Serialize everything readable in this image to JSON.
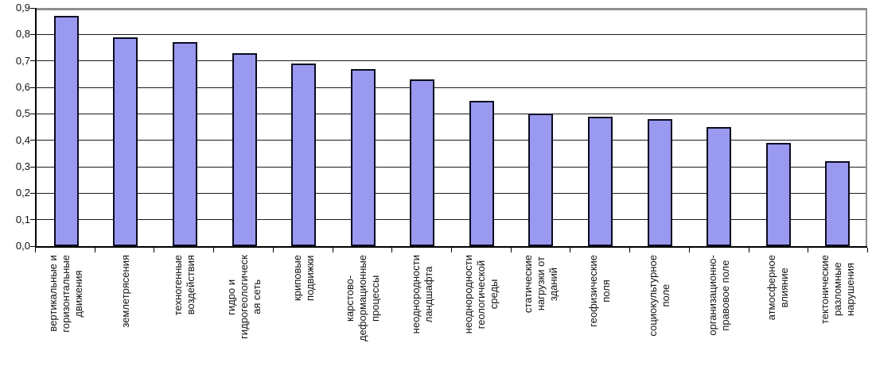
{
  "chart_data": {
    "type": "bar",
    "title": "",
    "xlabel": "",
    "ylabel": "",
    "categories": [
      "вертикальные и\nгоризонтальные\nдвижения",
      "землетрясения",
      "техногенные\nвоздействия",
      "гидро и\nгидрогеологическ\nая сеть",
      "криповые\nподвижки",
      "карстово-\nдеформационные\nпроцессы",
      "неоднородности\nландшафта",
      "неоднородности\nгеологической\nсреды",
      "статические\nнагрузки от\nзданий",
      "геофизические\nполя",
      "социокультурное\nполе",
      "организационно-\nправовое поле",
      "атмосферное\nвлияние",
      "тектонические\nразломные\nнарушения"
    ],
    "values": [
      0.87,
      0.79,
      0.77,
      0.73,
      0.69,
      0.67,
      0.63,
      0.55,
      0.5,
      0.49,
      0.48,
      0.45,
      0.39,
      0.32
    ],
    "y_ticks": [
      0,
      0.1,
      0.2,
      0.3,
      0.4,
      0.5,
      0.6,
      0.7,
      0.8,
      0.9
    ],
    "y_tick_labels": [
      "0,0",
      "0,1",
      "0,2",
      "0,3",
      "0,4",
      "0,5",
      "0,6",
      "0,7",
      "0,8",
      "0,9"
    ],
    "ylim": [
      0,
      0.9
    ],
    "grid": true,
    "legend": false,
    "colors": {
      "bar_fill": "#9999F0",
      "bar_border": "#0b0b20",
      "gridline": "#1c1c1c",
      "frame": "#8e8e8e",
      "axis": "#000000",
      "text": "#111111"
    }
  }
}
